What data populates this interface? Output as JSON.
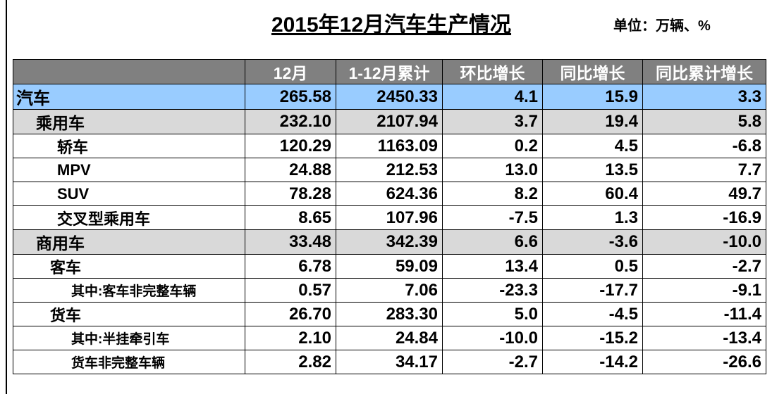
{
  "header": {
    "title": "2015年12月汽车生产情况",
    "unit": "单位：万辆、%"
  },
  "table": {
    "columns": [
      "12月",
      "1-12月累计",
      "环比增长",
      "同比增长",
      "同比累计增长"
    ],
    "rows": [
      [
        "汽车",
        "265.58",
        "2450.33",
        "4.1",
        "15.9",
        "3.3"
      ],
      [
        "乘用车",
        "232.10",
        "2107.94",
        "3.7",
        "19.4",
        "5.8"
      ],
      [
        "轿车",
        "120.29",
        "1163.09",
        "0.2",
        "4.5",
        "-6.8"
      ],
      [
        "MPV",
        "24.88",
        "212.53",
        "13.0",
        "13.5",
        "7.7"
      ],
      [
        "SUV",
        "78.28",
        "624.36",
        "8.2",
        "60.4",
        "49.7"
      ],
      [
        "交叉型乘用车",
        "8.65",
        "107.96",
        "-7.5",
        "1.3",
        "-16.9"
      ],
      [
        "商用车",
        "33.48",
        "342.39",
        "6.6",
        "-3.6",
        "-10.0"
      ],
      [
        "客车",
        "6.78",
        "59.09",
        "13.4",
        "0.5",
        "-2.7"
      ],
      [
        "其中:客车非完整车辆",
        "0.57",
        "7.06",
        "-23.3",
        "-17.7",
        "-9.1"
      ],
      [
        "货车",
        "26.70",
        "283.30",
        "5.0",
        "-4.5",
        "-11.4"
      ],
      [
        "其中:半挂牵引车",
        "2.10",
        "24.84",
        "-10.0",
        "-15.2",
        "-13.4"
      ],
      [
        "货车非完整车辆",
        "2.82",
        "34.17",
        "-2.7",
        "-14.2",
        "-26.6"
      ]
    ]
  }
}
